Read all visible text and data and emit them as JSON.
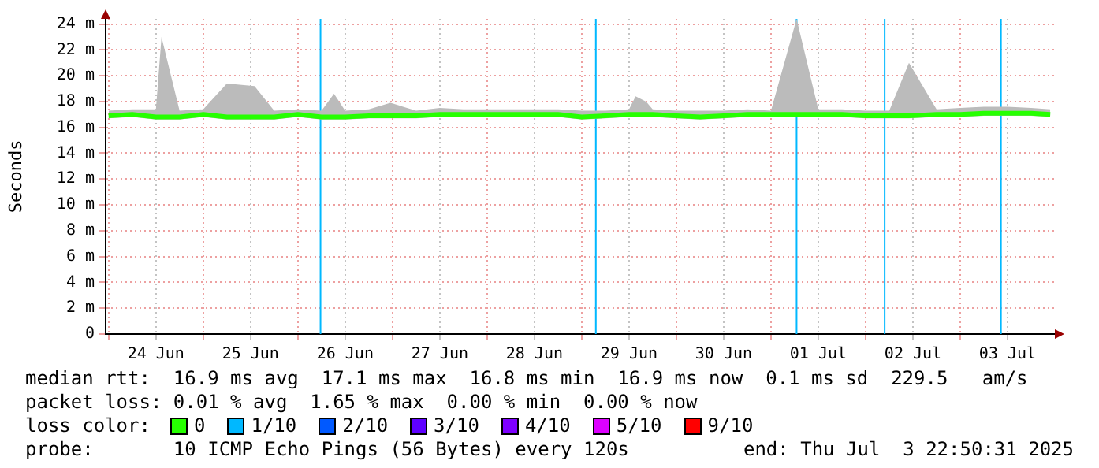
{
  "chart_data": {
    "type": "line",
    "ylabel": "Seconds",
    "xlim": [
      "2025-06-23T23:15",
      "2025-07-04T00:00"
    ],
    "ylim": [
      0,
      24.4
    ],
    "xticks": [
      {
        "value": "2025-06-24T00:00",
        "label": null
      },
      {
        "value": "2025-06-24T12:00",
        "label": "24 Jun"
      },
      {
        "value": "2025-06-25T00:00",
        "label": null
      },
      {
        "value": "2025-06-25T12:00",
        "label": "25 Jun"
      },
      {
        "value": "2025-06-26T00:00",
        "label": null
      },
      {
        "value": "2025-06-26T12:00",
        "label": "26 Jun"
      },
      {
        "value": "2025-06-27T00:00",
        "label": null
      },
      {
        "value": "2025-06-27T12:00",
        "label": "27 Jun"
      },
      {
        "value": "2025-06-28T00:00",
        "label": null
      },
      {
        "value": "2025-06-28T12:00",
        "label": "28 Jun"
      },
      {
        "value": "2025-06-29T00:00",
        "label": null
      },
      {
        "value": "2025-06-29T12:00",
        "label": "29 Jun"
      },
      {
        "value": "2025-06-30T00:00",
        "label": null
      },
      {
        "value": "2025-06-30T12:00",
        "label": "30 Jun"
      },
      {
        "value": "2025-07-01T00:00",
        "label": null
      },
      {
        "value": "2025-07-01T12:00",
        "label": "01 Jul"
      },
      {
        "value": "2025-07-02T00:00",
        "label": null
      },
      {
        "value": "2025-07-02T12:00",
        "label": "02 Jul"
      },
      {
        "value": "2025-07-03T00:00",
        "label": null
      },
      {
        "value": "2025-07-03T12:00",
        "label": "03 Jul"
      }
    ],
    "yticks": [
      0,
      {
        "value": 2,
        "label": "2 m"
      },
      {
        "value": 4,
        "label": "4 m"
      },
      {
        "value": 6,
        "label": "6 m"
      },
      {
        "value": 8,
        "label": "8 m"
      },
      {
        "value": 10,
        "label": "10 m"
      },
      {
        "value": 12,
        "label": "12 m"
      },
      {
        "value": 14,
        "label": "14 m"
      },
      {
        "value": 16,
        "label": "16 m"
      },
      {
        "value": 18,
        "label": "18 m"
      },
      {
        "value": 20,
        "label": "20 m"
      },
      {
        "value": 22,
        "label": "22 m"
      },
      {
        "value": 24,
        "label": "24 m"
      }
    ],
    "grid": true,
    "legend": false,
    "marker": "none",
    "line_style": "solid",
    "x": [
      "2025-06-24T00:00",
      "2025-06-24T06:00",
      "2025-06-24T12:00",
      "2025-06-24T13:25",
      "2025-06-24T18:00",
      "2025-06-25T00:00",
      "2025-06-25T06:00",
      "2025-06-25T13:00",
      "2025-06-25T18:00",
      "2025-06-26T00:00",
      "2025-06-26T06:00",
      "2025-06-26T09:10",
      "2025-06-26T12:00",
      "2025-06-26T18:00",
      "2025-06-26T23:30",
      "2025-06-27T06:00",
      "2025-06-27T12:00",
      "2025-06-27T18:00",
      "2025-06-28T00:00",
      "2025-06-28T06:00",
      "2025-06-28T12:00",
      "2025-06-28T18:00",
      "2025-06-29T00:00",
      "2025-06-29T06:00",
      "2025-06-29T12:00",
      "2025-06-29T13:40",
      "2025-06-29T16:20",
      "2025-06-29T18:00",
      "2025-06-30T00:00",
      "2025-06-30T06:00",
      "2025-06-30T12:00",
      "2025-06-30T18:00",
      "2025-07-01T00:00",
      "2025-07-01T06:30",
      "2025-07-01T12:00",
      "2025-07-01T18:00",
      "2025-07-02T00:00",
      "2025-07-02T06:00",
      "2025-07-02T11:00",
      "2025-07-02T18:00",
      "2025-07-03T00:00",
      "2025-07-03T06:00",
      "2025-07-03T12:00",
      "2025-07-03T18:00",
      "2025-07-03T22:50"
    ],
    "series": [
      {
        "color": "#26ff00",
        "values": [
          16.9,
          17.0,
          16.8,
          16.8,
          16.8,
          17.0,
          16.8,
          16.8,
          16.8,
          17.0,
          16.8,
          16.8,
          16.8,
          16.9,
          16.9,
          16.9,
          17.0,
          17.0,
          17.0,
          17.0,
          17.0,
          17.0,
          16.8,
          16.9,
          17.0,
          17.0,
          17.0,
          17.0,
          16.9,
          16.8,
          16.9,
          17.0,
          17.0,
          17.0,
          17.0,
          17.0,
          16.9,
          16.9,
          16.9,
          17.0,
          17.0,
          17.1,
          17.1,
          17.1,
          17.0
        ],
        "lower": [
          16.7,
          16.8,
          16.6,
          16.6,
          16.6,
          16.8,
          16.6,
          16.6,
          16.6,
          16.8,
          16.6,
          16.6,
          16.6,
          16.7,
          16.7,
          16.7,
          16.8,
          16.8,
          16.8,
          16.8,
          16.8,
          16.8,
          16.6,
          16.7,
          16.8,
          16.8,
          16.8,
          16.8,
          16.7,
          16.6,
          16.7,
          16.8,
          16.8,
          16.8,
          16.8,
          16.8,
          16.7,
          16.7,
          16.7,
          16.8,
          16.8,
          16.9,
          16.9,
          16.9,
          16.8
        ],
        "upper": [
          17.3,
          17.4,
          17.4,
          23.0,
          17.3,
          17.4,
          19.4,
          19.2,
          17.3,
          17.4,
          17.3,
          18.6,
          17.3,
          17.4,
          17.9,
          17.3,
          17.5,
          17.4,
          17.4,
          17.4,
          17.4,
          17.4,
          17.3,
          17.3,
          17.4,
          18.4,
          18.0,
          17.4,
          17.3,
          17.3,
          17.3,
          17.4,
          17.3,
          24.4,
          17.4,
          17.4,
          17.3,
          17.3,
          21.0,
          17.4,
          17.5,
          17.6,
          17.6,
          17.5,
          17.4
        ]
      }
    ],
    "ref_lines": [
      {
        "axis": "x",
        "value": "2025-06-26T05:45",
        "color": "#00b8ff"
      },
      {
        "axis": "x",
        "value": "2025-06-29T03:35",
        "color": "#00b8ff"
      },
      {
        "axis": "x",
        "value": "2025-07-01T06:30",
        "color": "#00b8ff"
      },
      {
        "axis": "x",
        "value": "2025-07-02T04:50",
        "color": "#00b8ff"
      },
      {
        "axis": "x",
        "value": "2025-07-03T10:20",
        "color": "#00b8ff"
      }
    ],
    "annotations": [
      "median rtt:  16.9 ms avg  17.1 ms max  16.8 ms min  16.9 ms now  0.1 ms sd  229.5   am/s",
      "packet loss: 0.01 % avg  1.65 % max  0.00 % min  0.00 % now",
      "loss color:",
      "0",
      "1/10",
      "2/10",
      "3/10",
      "4/10",
      "5/10",
      "9/10",
      "probe:       10 ICMP Echo Pings (56 Bytes) every 120s",
      "end: Thu Jul  3 22:50:31 2025"
    ]
  }
}
